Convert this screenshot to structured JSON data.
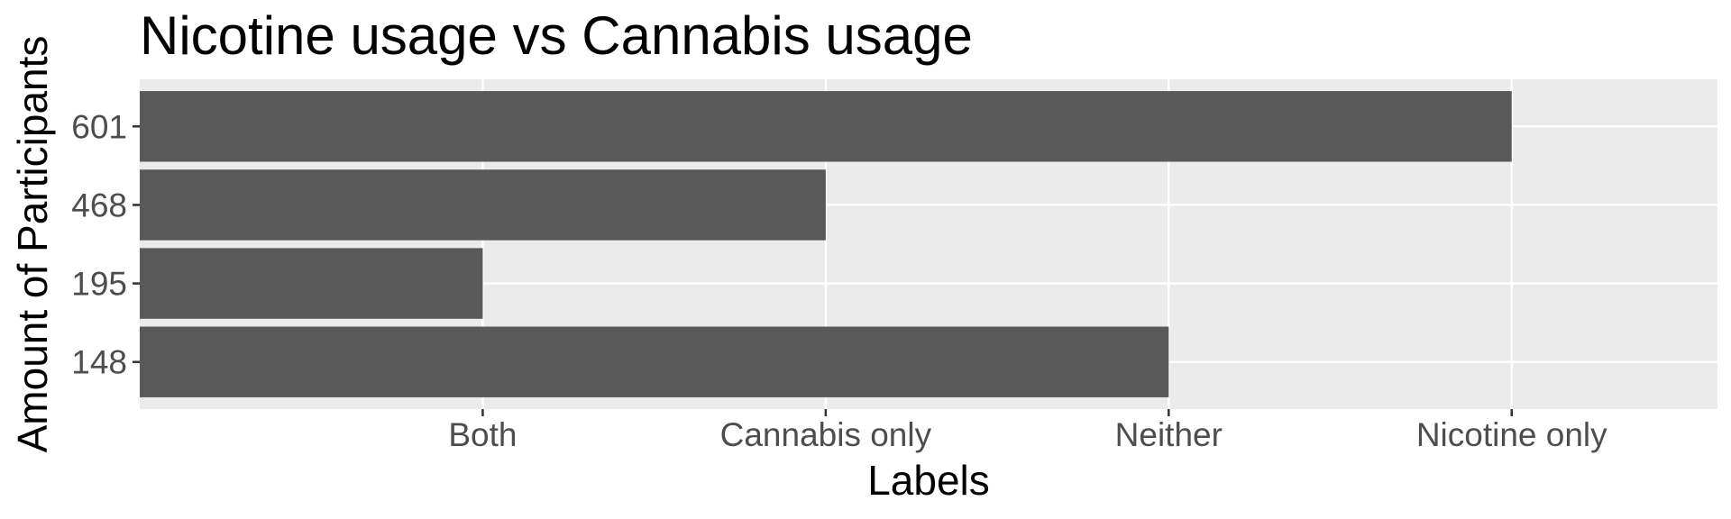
{
  "chart_data": {
    "type": "bar",
    "orientation": "horizontal",
    "title": "Nicotine usage vs Cannabis usage",
    "xlabel": "Labels",
    "ylabel": "Amount of Participants",
    "x_ticks": [
      "Both",
      "Cannabis only",
      "Neither",
      "Nicotine only"
    ],
    "y_categories": [
      "148",
      "195",
      "468",
      "601"
    ],
    "values": [
      "Neither",
      "Both",
      "Cannabis only",
      "Nicotine only"
    ],
    "grid": true,
    "legend": "none",
    "colors": {
      "bar": "#595959",
      "panel": "#ebebeb",
      "grid": "#ffffff",
      "tick_label": "#4d4d4d"
    }
  }
}
